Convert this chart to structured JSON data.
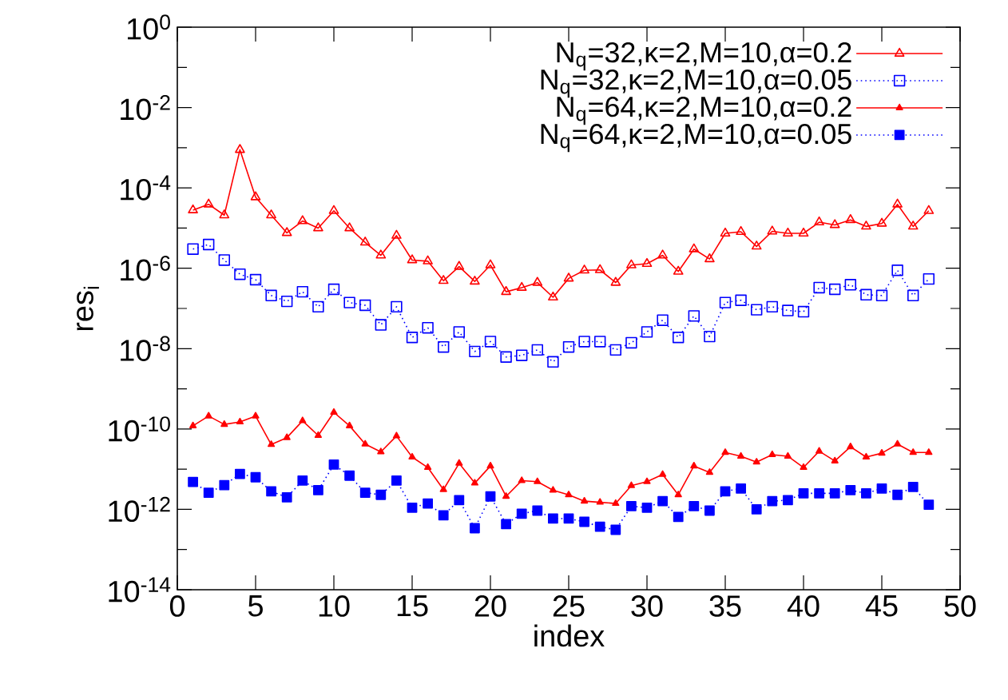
{
  "chart_data": {
    "type": "line",
    "xlabel": "index",
    "ylabel": "res$_{i}$",
    "log": "y",
    "grid": false,
    "legend": "top right",
    "x": [
      1,
      2,
      3,
      4,
      5,
      6,
      7,
      8,
      9,
      10,
      11,
      12,
      13,
      14,
      15,
      16,
      17,
      18,
      19,
      20,
      21,
      22,
      23,
      24,
      25,
      26,
      27,
      28,
      29,
      30,
      31,
      32,
      33,
      34,
      35,
      36,
      37,
      38,
      39,
      40,
      41,
      42,
      43,
      44,
      45,
      46,
      47,
      48
    ],
    "xlim": [
      0,
      50
    ],
    "xticks": [
      0,
      5,
      10,
      15,
      20,
      25,
      30,
      35,
      40,
      45,
      50
    ],
    "ylim": [
      1e-14,
      1
    ],
    "yticks": [
      {
        "value": 1e-14,
        "label": "10$^{-14}$"
      },
      {
        "value": 1e-12,
        "label": "10$^{-12}$"
      },
      {
        "value": 1e-10,
        "label": "10$^{-10}$"
      },
      {
        "value": 1e-08,
        "label": "10$^{-8}$"
      },
      {
        "value": 1e-06,
        "label": "10$^{-6}$"
      },
      {
        "value": 0.0001,
        "label": "10$^{-4}$"
      },
      {
        "value": 0.01,
        "label": "10$^{-2}$"
      },
      {
        "value": 1,
        "label": "10$^{0}$"
      },
      {
        "value": 1e-13,
        "label": null
      },
      {
        "value": 1e-11,
        "label": null
      },
      {
        "value": 1e-09,
        "label": null
      },
      {
        "value": 1e-07,
        "label": null
      },
      {
        "value": 1e-05,
        "label": null
      },
      {
        "value": 0.001,
        "label": null
      },
      {
        "value": 0.1,
        "label": null
      }
    ],
    "series": [
      {
        "name": "N$_{q}$=32,κ=2,M=10,α=0.2",
        "color": "#ff0000",
        "marker": "triangle",
        "line_style": "solid",
        "values": [
          2.8e-05,
          3.9e-05,
          2.1e-05,
          0.00089,
          5.9e-05,
          2.1e-05,
          7.6e-06,
          1.5e-05,
          1e-05,
          2.7e-05,
          1e-05,
          4.4e-06,
          2.1e-06,
          6.5e-06,
          1.6e-06,
          1.5e-06,
          4.9e-07,
          1.1e-06,
          4.7e-07,
          1.2e-06,
          2.6e-07,
          3.3e-07,
          4.4e-07,
          1.9e-07,
          5.6e-07,
          8.9e-07,
          9.1e-07,
          4.4e-07,
          1.2e-06,
          1.3e-06,
          2.1e-06,
          8.3e-07,
          3e-06,
          1.7e-06,
          7.4e-06,
          8.1e-06,
          3.5e-06,
          8.3e-06,
          7.4e-06,
          7.4e-06,
          1.4e-05,
          1.2e-05,
          1.6e-05,
          1.1e-05,
          1.3e-05,
          3.9e-05,
          1.1e-05,
          2.7e-05
        ]
      },
      {
        "name": "N$_{q}$=32,κ=2,M=10,α=0.05",
        "color": "#0000ff",
        "marker": "square",
        "line_style": "dotted",
        "values": [
          3e-06,
          3.9e-06,
          1.6e-06,
          7.1e-07,
          5.2e-07,
          2.1e-07,
          1.5e-07,
          2.6e-07,
          1.1e-07,
          3e-07,
          1.4e-07,
          1.2e-07,
          3.9e-08,
          1.1e-07,
          1.9e-08,
          3.3e-08,
          1.1e-08,
          2.6e-08,
          8.5e-09,
          1.5e-08,
          6.2e-09,
          6.8e-09,
          9.3e-09,
          4.7e-09,
          1.1e-08,
          1.5e-08,
          1.5e-08,
          9.3e-09,
          1.4e-08,
          2.6e-08,
          5.1e-08,
          1.9e-08,
          6.5e-08,
          2e-08,
          1.4e-07,
          1.6e-07,
          9.3e-08,
          1.1e-07,
          8.9e-08,
          8.3e-08,
          3.3e-07,
          3e-07,
          3.9e-07,
          2.2e-07,
          2.1e-07,
          8.9e-07,
          2.1e-07,
          5.4e-07
        ]
      },
      {
        "name": "N$_{q}$=64,κ=2,M=10,α=0.2",
        "color": "#ff0000",
        "marker": "triangle",
        "line_style": "solid",
        "values": [
          1.2e-10,
          2.1e-10,
          1.3e-10,
          1.5e-10,
          2.1e-10,
          4.1e-11,
          6.1e-11,
          1.6e-10,
          6.9e-11,
          2.6e-10,
          1.2e-10,
          4.2e-11,
          2.7e-11,
          6.7e-11,
          2e-11,
          1.1e-11,
          3.1e-12,
          1.4e-11,
          4.5e-12,
          1.2e-11,
          2.1e-12,
          5.2e-12,
          4.9e-12,
          3e-12,
          2.3e-12,
          1.6e-12,
          1.5e-12,
          1.4e-12,
          3.9e-12,
          4.9e-12,
          7.4e-12,
          2.3e-12,
          1.2e-11,
          8.3e-12,
          2.6e-11,
          2.1e-11,
          1.5e-11,
          2.3e-11,
          2.1e-11,
          1.1e-11,
          2.8e-11,
          1.6e-11,
          3.6e-11,
          2e-11,
          2.5e-11,
          4.2e-11,
          2.6e-11,
          2.6e-11
        ]
      },
      {
        "name": "N$_{q}$=64,κ=2,M=10,α=0.05",
        "color": "#0000ff",
        "marker": "square",
        "line_style": "dotted",
        "values": [
          4.8e-12,
          2.6e-12,
          4e-12,
          7.6e-12,
          6.3e-12,
          2.8e-12,
          2e-12,
          5.2e-12,
          3e-12,
          1.3e-11,
          6.9e-12,
          2.6e-12,
          2.3e-12,
          5.2e-12,
          1.1e-12,
          1.4e-12,
          7.1e-13,
          1.7e-12,
          3.4e-13,
          2.1e-12,
          4.3e-13,
          7.8e-13,
          9.3e-13,
          5.9e-13,
          5.9e-13,
          4.9e-13,
          3.7e-13,
          3.1e-13,
          1.2e-12,
          1.1e-12,
          1.6e-12,
          6.5e-13,
          1.2e-12,
          9.3e-13,
          2.8e-12,
          3.3e-12,
          1e-12,
          1.6e-12,
          1.7e-12,
          2.5e-12,
          2.5e-12,
          2.5e-12,
          3e-12,
          2.5e-12,
          3.3e-12,
          2.3e-12,
          3.6e-12,
          1.3e-12
        ]
      }
    ]
  }
}
